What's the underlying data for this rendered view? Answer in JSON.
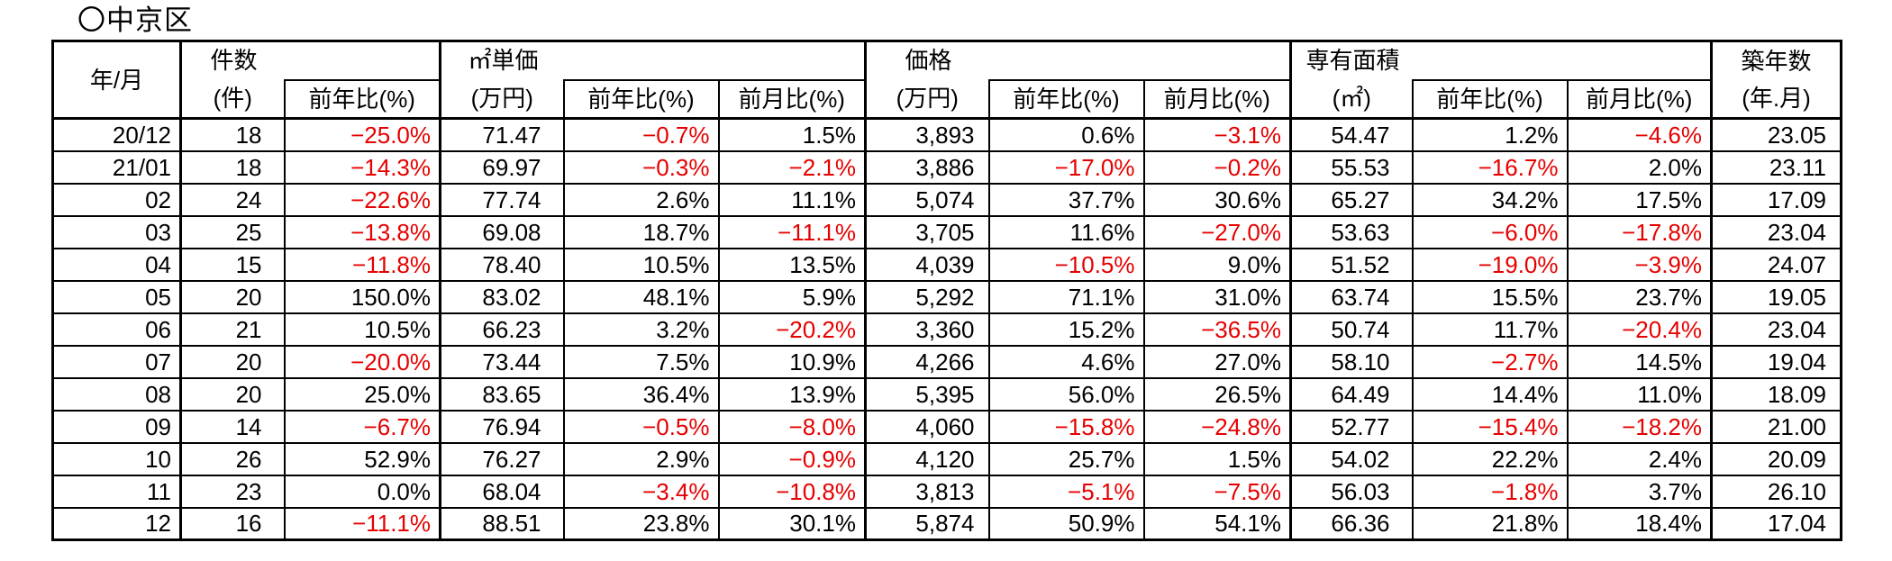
{
  "title": "〇中京区",
  "colors": {
    "negative": "#e60000",
    "text": "#000000",
    "border": "#000000"
  },
  "table": {
    "header": {
      "ym": "年/月",
      "groups": [
        {
          "label": "件数",
          "unit": "(件)",
          "subs": [
            "前年比(%)"
          ]
        },
        {
          "label": "㎡単価",
          "unit": "(万円)",
          "subs": [
            "前年比(%)",
            "前月比(%)"
          ]
        },
        {
          "label": "価格",
          "unit": "(万円)",
          "subs": [
            "前年比(%)",
            "前月比(%)"
          ]
        },
        {
          "label": "専有面積",
          "unit": "(㎡)",
          "subs": [
            "前年比(%)",
            "前月比(%)"
          ]
        },
        {
          "label": "築年数",
          "unit": "(年.月)",
          "subs": []
        }
      ]
    },
    "columns": [
      "year-month",
      "count",
      "count-yoy",
      "unit-price",
      "unit-price-yoy",
      "unit-price-mom",
      "price",
      "price-yoy",
      "price-mom",
      "area",
      "area-yoy",
      "area-mom",
      "building-age"
    ],
    "rows": [
      [
        "20/12",
        "18",
        "−25.0%",
        "71.47",
        "−0.7%",
        "1.5%",
        "3,893",
        "0.6%",
        "−3.1%",
        "54.47",
        "1.2%",
        "−4.6%",
        "23.05"
      ],
      [
        "21/01",
        "18",
        "−14.3%",
        "69.97",
        "−0.3%",
        "−2.1%",
        "3,886",
        "−17.0%",
        "−0.2%",
        "55.53",
        "−16.7%",
        "2.0%",
        "23.11"
      ],
      [
        "02",
        "24",
        "−22.6%",
        "77.74",
        "2.6%",
        "11.1%",
        "5,074",
        "37.7%",
        "30.6%",
        "65.27",
        "34.2%",
        "17.5%",
        "17.09"
      ],
      [
        "03",
        "25",
        "−13.8%",
        "69.08",
        "18.7%",
        "−11.1%",
        "3,705",
        "11.6%",
        "−27.0%",
        "53.63",
        "−6.0%",
        "−17.8%",
        "23.04"
      ],
      [
        "04",
        "15",
        "−11.8%",
        "78.40",
        "10.5%",
        "13.5%",
        "4,039",
        "−10.5%",
        "9.0%",
        "51.52",
        "−19.0%",
        "−3.9%",
        "24.07"
      ],
      [
        "05",
        "20",
        "150.0%",
        "83.02",
        "48.1%",
        "5.9%",
        "5,292",
        "71.1%",
        "31.0%",
        "63.74",
        "15.5%",
        "23.7%",
        "19.05"
      ],
      [
        "06",
        "21",
        "10.5%",
        "66.23",
        "3.2%",
        "−20.2%",
        "3,360",
        "15.2%",
        "−36.5%",
        "50.74",
        "11.7%",
        "−20.4%",
        "23.04"
      ],
      [
        "07",
        "20",
        "−20.0%",
        "73.44",
        "7.5%",
        "10.9%",
        "4,266",
        "4.6%",
        "27.0%",
        "58.10",
        "−2.7%",
        "14.5%",
        "19.04"
      ],
      [
        "08",
        "20",
        "25.0%",
        "83.65",
        "36.4%",
        "13.9%",
        "5,395",
        "56.0%",
        "26.5%",
        "64.49",
        "14.4%",
        "11.0%",
        "18.09"
      ],
      [
        "09",
        "14",
        "−6.7%",
        "76.94",
        "−0.5%",
        "−8.0%",
        "4,060",
        "−15.8%",
        "−24.8%",
        "52.77",
        "−15.4%",
        "−18.2%",
        "21.00"
      ],
      [
        "10",
        "26",
        "52.9%",
        "76.27",
        "2.9%",
        "−0.9%",
        "4,120",
        "25.7%",
        "1.5%",
        "54.02",
        "22.2%",
        "2.4%",
        "20.09"
      ],
      [
        "11",
        "23",
        "0.0%",
        "68.04",
        "−3.4%",
        "−10.8%",
        "3,813",
        "−5.1%",
        "−7.5%",
        "56.03",
        "−1.8%",
        "3.7%",
        "26.10"
      ],
      [
        "12",
        "16",
        "−11.1%",
        "88.51",
        "23.8%",
        "30.1%",
        "5,874",
        "50.9%",
        "54.1%",
        "66.36",
        "21.8%",
        "18.4%",
        "17.04"
      ]
    ]
  }
}
